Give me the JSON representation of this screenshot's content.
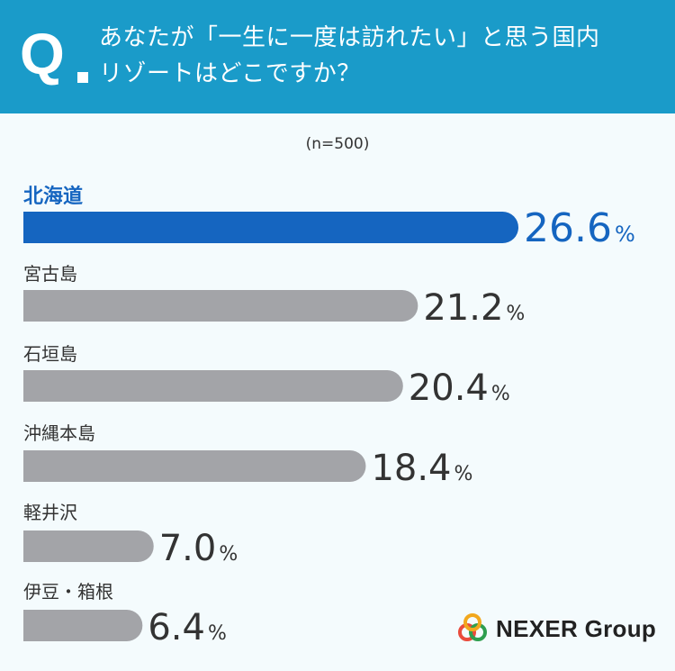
{
  "question": {
    "mark": "Q",
    "line1": "あなたが「一生に一度は訪れたい」と思う国内",
    "line2": "リゾートはどこですか？"
  },
  "sample_label": "(n=500)",
  "brand": {
    "name": "NEXER Group",
    "icon": "three-ring-logo-icon"
  },
  "colors": {
    "header": "#1a9bc9",
    "highlight": "#1565c0",
    "bar": "#a3a4a8",
    "text": "#333333"
  },
  "chart_data": {
    "type": "bar",
    "orientation": "horizontal",
    "categories": [
      "北海道",
      "宮古島",
      "石垣島",
      "沖縄本島",
      "軽井沢",
      "伊豆・箱根"
    ],
    "values": [
      26.6,
      21.2,
      20.4,
      18.4,
      7.0,
      6.4
    ],
    "value_labels": [
      "26.6",
      "21.2",
      "20.4",
      "18.4",
      "7.0",
      "6.4"
    ],
    "unit": "%",
    "highlight_index": 0,
    "title": "",
    "xlabel": "",
    "ylabel": "",
    "xlim": [
      0,
      26.6
    ]
  }
}
